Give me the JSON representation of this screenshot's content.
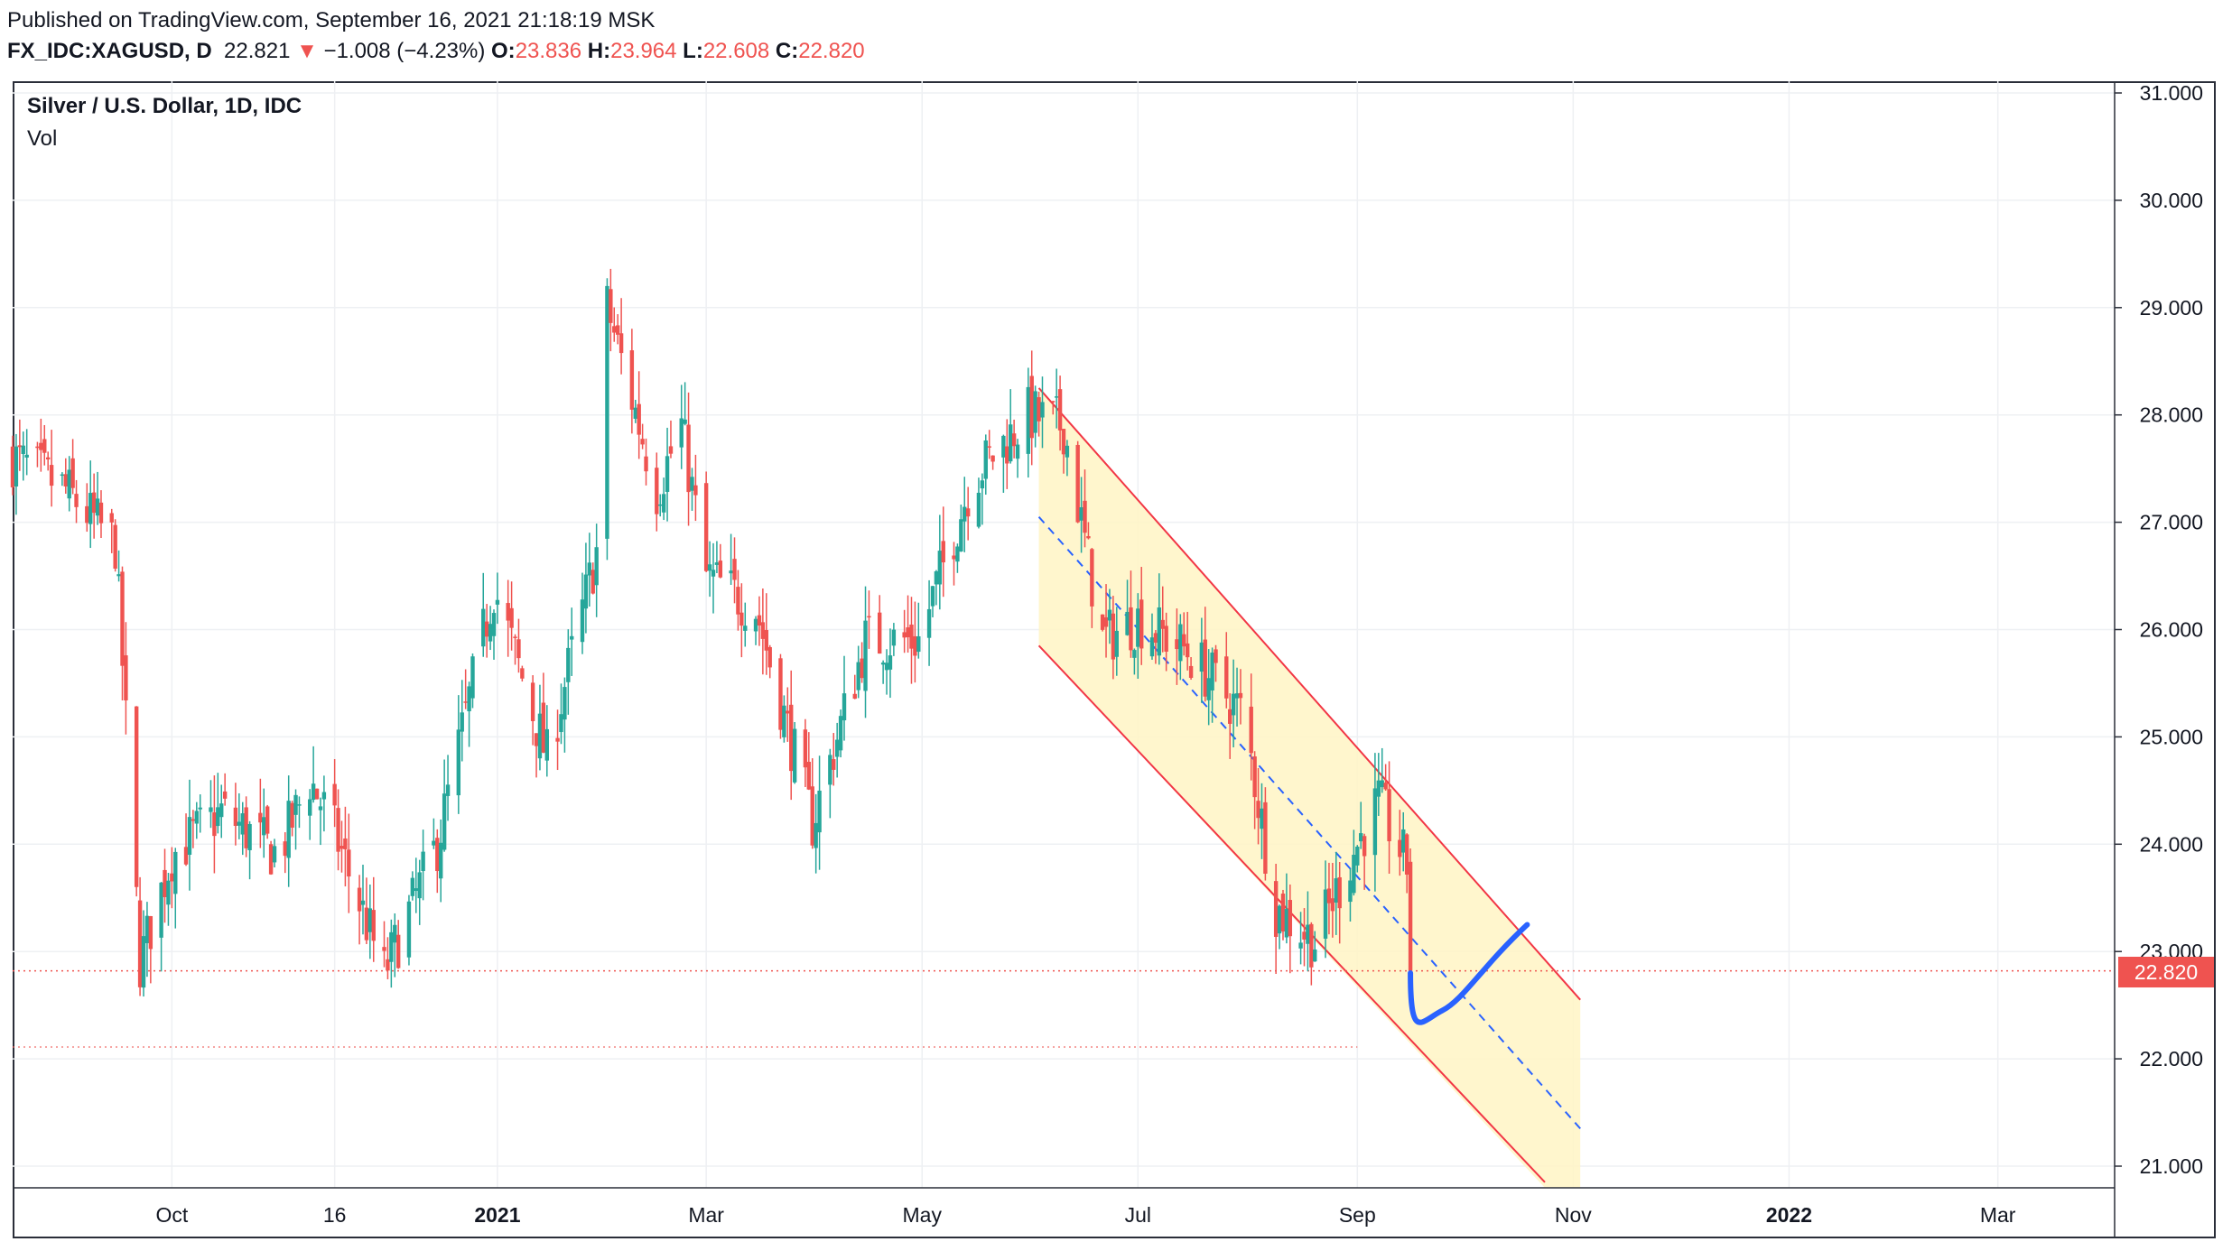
{
  "header": {
    "published": "Published on TradingView.com, September 16, 2021 21:18:19 MSK",
    "symbol": "FX_IDC:XAGUSD, D",
    "last": "22.821",
    "change_arrow": "▼",
    "change": "−1.008 (−4.23%)",
    "open_label": "O:",
    "open": "23.836",
    "high_label": "H:",
    "high": "23.964",
    "low_label": "L:",
    "low": "22.608",
    "close_label": "C:",
    "close": "22.820"
  },
  "legend": {
    "title": "Silver / U.S. Dollar, 1D, IDC",
    "volume": "Vol"
  },
  "price_badge": "22.820",
  "colors": {
    "up": "#26a69a",
    "down": "#ef5350",
    "channel": "#f23645",
    "channel_fill": "#fff5c4",
    "projection": "#2962ff",
    "grid": "#eef0f3"
  },
  "chart_data": {
    "type": "candlestick",
    "title": "Silver / U.S. Dollar, 1D, IDC",
    "x_ticks": [
      "Oct",
      "16",
      "2021",
      "Mar",
      "May",
      "Jul",
      "Sep",
      "Nov",
      "2022",
      "Mar"
    ],
    "y_ticks": [
      "31.000",
      "30.000",
      "29.000",
      "28.000",
      "27.000",
      "26.000",
      "25.000",
      "24.000",
      "23.000",
      "22.000",
      "21.000"
    ],
    "ylim": [
      20.8,
      31.1
    ],
    "xlim": [
      "2020-08-17",
      "2022-04-03"
    ],
    "last_price": 22.82,
    "series_close": [
      {
        "date": "2020-08-17",
        "close": 27.6
      },
      {
        "date": "2020-09-01",
        "close": 27.3
      },
      {
        "date": "2020-09-15",
        "close": 26.8
      },
      {
        "date": "2020-09-22",
        "close": 22.9
      },
      {
        "date": "2020-10-01",
        "close": 23.9
      },
      {
        "date": "2020-10-15",
        "close": 24.3
      },
      {
        "date": "2020-10-31",
        "close": 23.9
      },
      {
        "date": "2020-11-09",
        "close": 24.6
      },
      {
        "date": "2020-11-15",
        "close": 24.2
      },
      {
        "date": "2020-11-30",
        "close": 22.8
      },
      {
        "date": "2020-12-15",
        "close": 24.0
      },
      {
        "date": "2020-12-31",
        "close": 26.4
      },
      {
        "date": "2021-01-15",
        "close": 24.8
      },
      {
        "date": "2021-01-31",
        "close": 27.0
      },
      {
        "date": "2021-02-01",
        "close": 29.0
      },
      {
        "date": "2021-02-15",
        "close": 27.3
      },
      {
        "date": "2021-02-22",
        "close": 27.9
      },
      {
        "date": "2021-03-01",
        "close": 26.5
      },
      {
        "date": "2021-03-15",
        "close": 26.2
      },
      {
        "date": "2021-03-31",
        "close": 24.2
      },
      {
        "date": "2021-04-15",
        "close": 25.9
      },
      {
        "date": "2021-04-30",
        "close": 25.9
      },
      {
        "date": "2021-05-15",
        "close": 27.4
      },
      {
        "date": "2021-05-31",
        "close": 28.0
      },
      {
        "date": "2021-06-10",
        "close": 27.9
      },
      {
        "date": "2021-06-21",
        "close": 25.9
      },
      {
        "date": "2021-07-01",
        "close": 26.1
      },
      {
        "date": "2021-07-15",
        "close": 25.8
      },
      {
        "date": "2021-07-31",
        "close": 25.2
      },
      {
        "date": "2021-08-09",
        "close": 23.4
      },
      {
        "date": "2021-08-20",
        "close": 23.1
      },
      {
        "date": "2021-09-01",
        "close": 24.0
      },
      {
        "date": "2021-09-07",
        "close": 24.4
      },
      {
        "date": "2021-09-15",
        "close": 23.8
      },
      {
        "date": "2021-09-16",
        "close": 22.82
      }
    ],
    "annotations": {
      "descending_channel": {
        "upper": [
          {
            "date": "2021-06-03",
            "price": 28.25
          },
          {
            "date": "2021-11-03",
            "price": 22.55
          }
        ],
        "lower": [
          {
            "date": "2021-06-03",
            "price": 25.85
          },
          {
            "date": "2021-10-24",
            "price": 20.85
          }
        ],
        "midline": [
          {
            "date": "2021-06-03",
            "price": 27.05
          },
          {
            "date": "2021-11-03",
            "price": 21.35
          }
        ]
      },
      "horizontal_levels": [
        22.82,
        22.11
      ],
      "projection_curve": [
        {
          "date": "2021-09-16",
          "price": 22.8
        },
        {
          "date": "2021-09-19",
          "price": 22.4
        },
        {
          "date": "2021-09-25",
          "price": 22.45
        },
        {
          "date": "2021-10-06",
          "price": 22.85
        },
        {
          "date": "2021-10-19",
          "price": 23.25
        }
      ]
    }
  }
}
